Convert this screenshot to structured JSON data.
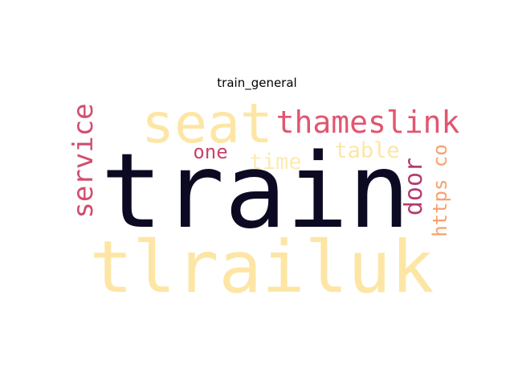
{
  "title": "train_general",
  "words": [
    {
      "text": "train",
      "color": "#0c0a22"
    },
    {
      "text": "tlrailuk",
      "color": "#fde6a5"
    },
    {
      "text": "seat",
      "color": "#fde6a5"
    },
    {
      "text": "thameslink",
      "color": "#e05670"
    },
    {
      "text": "service",
      "color": "#d04f6e"
    },
    {
      "text": "table",
      "color": "#fde6a5"
    },
    {
      "text": "time",
      "color": "#fcebb1"
    },
    {
      "text": "one",
      "color": "#c8446a"
    },
    {
      "text": "door",
      "color": "#b33d6e"
    },
    {
      "text": "https co",
      "color": "#f8a06e"
    }
  ]
}
